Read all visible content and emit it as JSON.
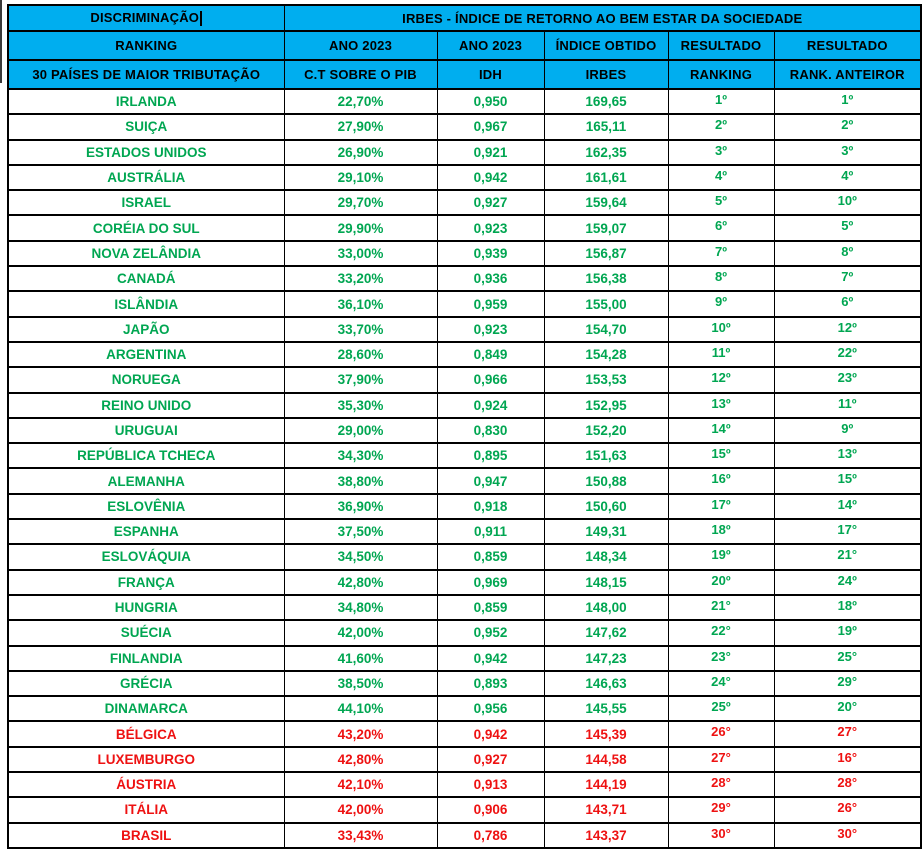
{
  "colors": {
    "header_bg": "#00AEEF",
    "grid": "#000000",
    "group_top_text": "#00A651",
    "group_bottom_text": "#EE1111"
  },
  "header": {
    "row1": {
      "discriminacao": "DISCRIMINAÇÃO",
      "irbes_title": "IRBES - ÍNDICE DE RETORNO AO BEM ESTAR DA SOCIEDADE"
    },
    "row2": {
      "col1": "RANKING",
      "col2": "ANO 2023",
      "col3": "ANO 2023",
      "col4": "ÍNDICE OBTIDO",
      "col5": "RESULTADO",
      "col6": "RESULTADO"
    },
    "row3": {
      "col1": "30 PAÍSES DE MAIOR TRIBUTAÇÃO",
      "col2": "C.T SOBRE O PIB",
      "col3": "IDH",
      "col4": "IRBES",
      "col5": "RANKING",
      "col6": "RANK. ANTEIROR"
    }
  },
  "rows": [
    {
      "country": "IRLANDA",
      "ct_pib": "22,70%",
      "idh": "0,950",
      "irbes": "169,65",
      "ranking": "1º",
      "rank_anterior": "1º",
      "color": "green"
    },
    {
      "country": "SUIÇA",
      "ct_pib": "27,90%",
      "idh": "0,967",
      "irbes": "165,11",
      "ranking": "2º",
      "rank_anterior": "2º",
      "color": "green"
    },
    {
      "country": "ESTADOS UNIDOS",
      "ct_pib": "26,90%",
      "idh": "0,921",
      "irbes": "162,35",
      "ranking": "3º",
      "rank_anterior": "3º",
      "color": "green"
    },
    {
      "country": "AUSTRÁLIA",
      "ct_pib": "29,10%",
      "idh": "0,942",
      "irbes": "161,61",
      "ranking": "4º",
      "rank_anterior": "4º",
      "color": "green"
    },
    {
      "country": "ISRAEL",
      "ct_pib": "29,70%",
      "idh": "0,927",
      "irbes": "159,64",
      "ranking": "5º",
      "rank_anterior": "10º",
      "color": "green"
    },
    {
      "country": "CORÉIA DO SUL",
      "ct_pib": "29,90%",
      "idh": "0,923",
      "irbes": "159,07",
      "ranking": "6º",
      "rank_anterior": "5º",
      "color": "green"
    },
    {
      "country": "NOVA ZELÂNDIA",
      "ct_pib": "33,00%",
      "idh": "0,939",
      "irbes": "156,87",
      "ranking": "7º",
      "rank_anterior": "8º",
      "color": "green"
    },
    {
      "country": "CANADÁ",
      "ct_pib": "33,20%",
      "idh": "0,936",
      "irbes": "156,38",
      "ranking": "8º",
      "rank_anterior": "7º",
      "color": "green"
    },
    {
      "country": "ISLÂNDIA",
      "ct_pib": "36,10%",
      "idh": "0,959",
      "irbes": "155,00",
      "ranking": "9º",
      "rank_anterior": "6º",
      "color": "green"
    },
    {
      "country": "JAPÃO",
      "ct_pib": "33,70%",
      "idh": "0,923",
      "irbes": "154,70",
      "ranking": "10º",
      "rank_anterior": "12º",
      "color": "green"
    },
    {
      "country": "ARGENTINA",
      "ct_pib": "28,60%",
      "idh": "0,849",
      "irbes": "154,28",
      "ranking": "11º",
      "rank_anterior": "22º",
      "color": "green"
    },
    {
      "country": "NORUEGA",
      "ct_pib": "37,90%",
      "idh": "0,966",
      "irbes": "153,53",
      "ranking": "12º",
      "rank_anterior": "23º",
      "color": "green"
    },
    {
      "country": "REINO UNIDO",
      "ct_pib": "35,30%",
      "idh": "0,924",
      "irbes": "152,95",
      "ranking": "13º",
      "rank_anterior": "11º",
      "color": "green"
    },
    {
      "country": "URUGUAI",
      "ct_pib": "29,00%",
      "idh": "0,830",
      "irbes": "152,20",
      "ranking": "14º",
      "rank_anterior": "9º",
      "color": "green"
    },
    {
      "country": "REPÚBLICA TCHECA",
      "ct_pib": "34,30%",
      "idh": "0,895",
      "irbes": "151,63",
      "ranking": "15º",
      "rank_anterior": "13º",
      "color": "green"
    },
    {
      "country": "ALEMANHA",
      "ct_pib": "38,80%",
      "idh": "0,947",
      "irbes": "150,88",
      "ranking": "16º",
      "rank_anterior": "15º",
      "color": "green"
    },
    {
      "country": "ESLOVÊNIA",
      "ct_pib": "36,90%",
      "idh": "0,918",
      "irbes": "150,60",
      "ranking": "17º",
      "rank_anterior": "14º",
      "color": "green"
    },
    {
      "country": "ESPANHA",
      "ct_pib": "37,50%",
      "idh": "0,911",
      "irbes": "149,31",
      "ranking": "18º",
      "rank_anterior": "17°",
      "color": "green"
    },
    {
      "country": "ESLOVÁQUIA",
      "ct_pib": "34,50%",
      "idh": "0,859",
      "irbes": "148,34",
      "ranking": "19º",
      "rank_anterior": "21°",
      "color": "green"
    },
    {
      "country": "FRANÇA",
      "ct_pib": "42,80%",
      "idh": "0,969",
      "irbes": "148,15",
      "ranking": "20º",
      "rank_anterior": "24º",
      "color": "green"
    },
    {
      "country": "HUNGRIA",
      "ct_pib": "34,80%",
      "idh": "0,859",
      "irbes": "148,00",
      "ranking": "21°",
      "rank_anterior": "18º",
      "color": "green"
    },
    {
      "country": "SUÉCIA",
      "ct_pib": "42,00%",
      "idh": "0,952",
      "irbes": "147,62",
      "ranking": "22°",
      "rank_anterior": "19º",
      "color": "green"
    },
    {
      "country": "FINLANDIA",
      "ct_pib": "41,60%",
      "idh": "0,942",
      "irbes": "147,23",
      "ranking": "23°",
      "rank_anterior": "25°",
      "color": "green"
    },
    {
      "country": "GRÉCIA",
      "ct_pib": "38,50%",
      "idh": "0,893",
      "irbes": "146,63",
      "ranking": "24°",
      "rank_anterior": "29°",
      "color": "green"
    },
    {
      "country": "DINAMARCA",
      "ct_pib": "44,10%",
      "idh": "0,956",
      "irbes": "145,55",
      "ranking": "25º",
      "rank_anterior": "20°",
      "color": "green"
    },
    {
      "country": "BÉLGICA",
      "ct_pib": "43,20%",
      "idh": "0,942",
      "irbes": "145,39",
      "ranking": "26°",
      "rank_anterior": "27°",
      "color": "red"
    },
    {
      "country": "LUXEMBURGO",
      "ct_pib": "42,80%",
      "idh": "0,927",
      "irbes": "144,58",
      "ranking": "27°",
      "rank_anterior": "16°",
      "color": "red"
    },
    {
      "country": "ÁUSTRIA",
      "ct_pib": "42,10%",
      "idh": "0,913",
      "irbes": "144,19",
      "ranking": "28°",
      "rank_anterior": "28°",
      "color": "red"
    },
    {
      "country": "ITÁLIA",
      "ct_pib": "42,00%",
      "idh": "0,906",
      "irbes": "143,71",
      "ranking": "29°",
      "rank_anterior": "26°",
      "color": "red"
    },
    {
      "country": "BRASIL",
      "ct_pib": "33,43%",
      "idh": "0,786",
      "irbes": "143,37",
      "ranking": "30°",
      "rank_anterior": "30°",
      "color": "red"
    }
  ]
}
